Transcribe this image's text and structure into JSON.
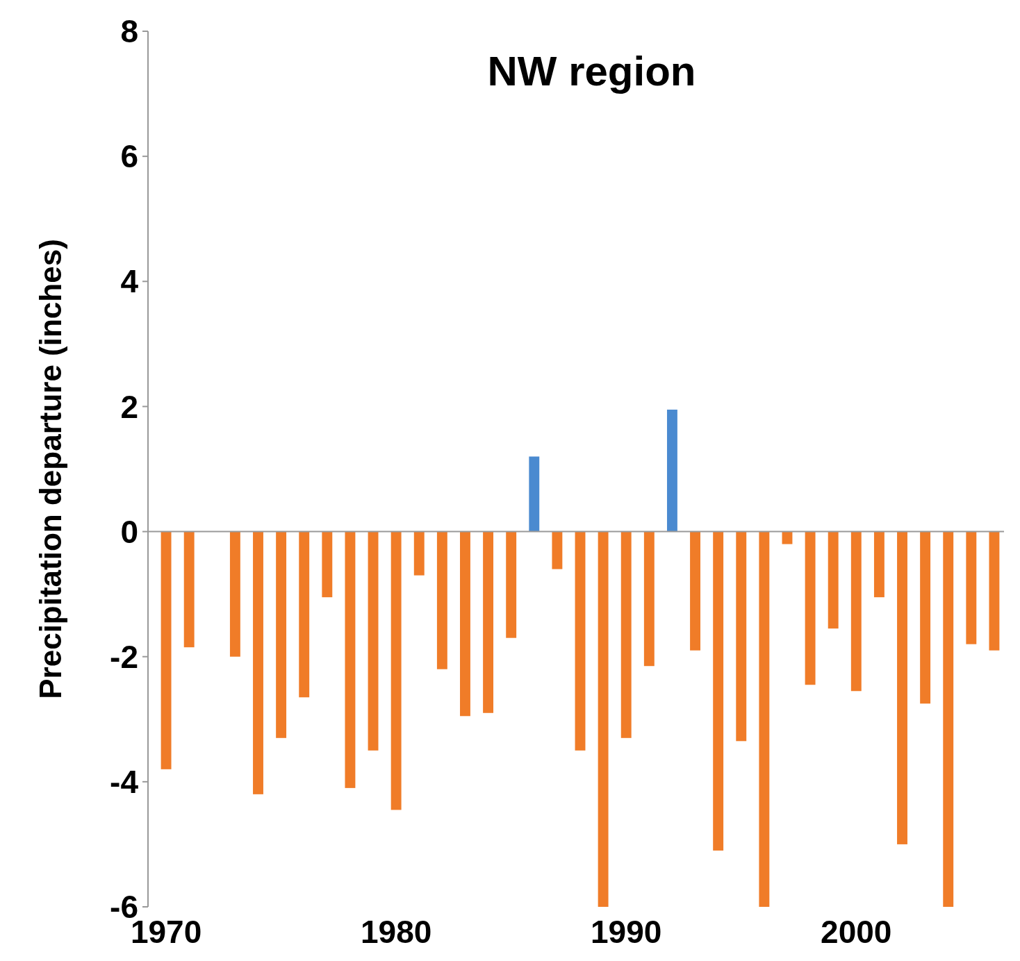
{
  "chart_data": {
    "type": "bar",
    "title": "NW region",
    "ylabel": "Precipitation departure (inches)",
    "categories": [
      "1970",
      null,
      null,
      null,
      null,
      null,
      null,
      null,
      null,
      null,
      "1980",
      null,
      null,
      null,
      null,
      null,
      null,
      null,
      null,
      null,
      "1990",
      null,
      null,
      null,
      null,
      null,
      null,
      null,
      null,
      null,
      "2000",
      null,
      null,
      null,
      null,
      null,
      null
    ],
    "values": [
      -3.8,
      -1.85,
      null,
      -2.0,
      -4.2,
      -3.3,
      -2.65,
      -1.05,
      -4.1,
      -3.5,
      -4.45,
      -0.7,
      -2.2,
      -2.95,
      -2.9,
      -1.7,
      1.2,
      -0.6,
      -3.5,
      -6,
      -3.3,
      -2.15,
      1.95,
      -1.9,
      -5.1,
      -3.35,
      -6,
      -0.2,
      -2.45,
      -1.55,
      -2.55,
      -1.05,
      -5.0,
      -2.75,
      -6,
      -1.8,
      -1.9
    ],
    "colors": [
      "#f07c28",
      "#f07c28",
      null,
      "#f07c28",
      "#f07c28",
      "#f07c28",
      "#f07c28",
      "#f07c28",
      "#f07c28",
      "#f07c28",
      "#f07c28",
      "#f07c28",
      "#f07c28",
      "#f07c28",
      "#f07c28",
      "#f07c28",
      "#4a8ad0",
      "#f07c28",
      "#f07c28",
      "#f07c28",
      "#f07c28",
      "#f07c28",
      "#4a8ad0",
      "#f07c28",
      "#f07c28",
      "#f07c28",
      "#f07c28",
      "#f07c28",
      "#f07c28",
      "#f07c28",
      "#f07c28",
      "#f07c28",
      "#f07c28",
      "#f07c28",
      "#f07c28",
      "#f07c28",
      "#f07c28"
    ],
    "ylim": [
      -6,
      8
    ],
    "yticks": [
      -6,
      -4,
      -2,
      0,
      2,
      4,
      6,
      8
    ]
  }
}
